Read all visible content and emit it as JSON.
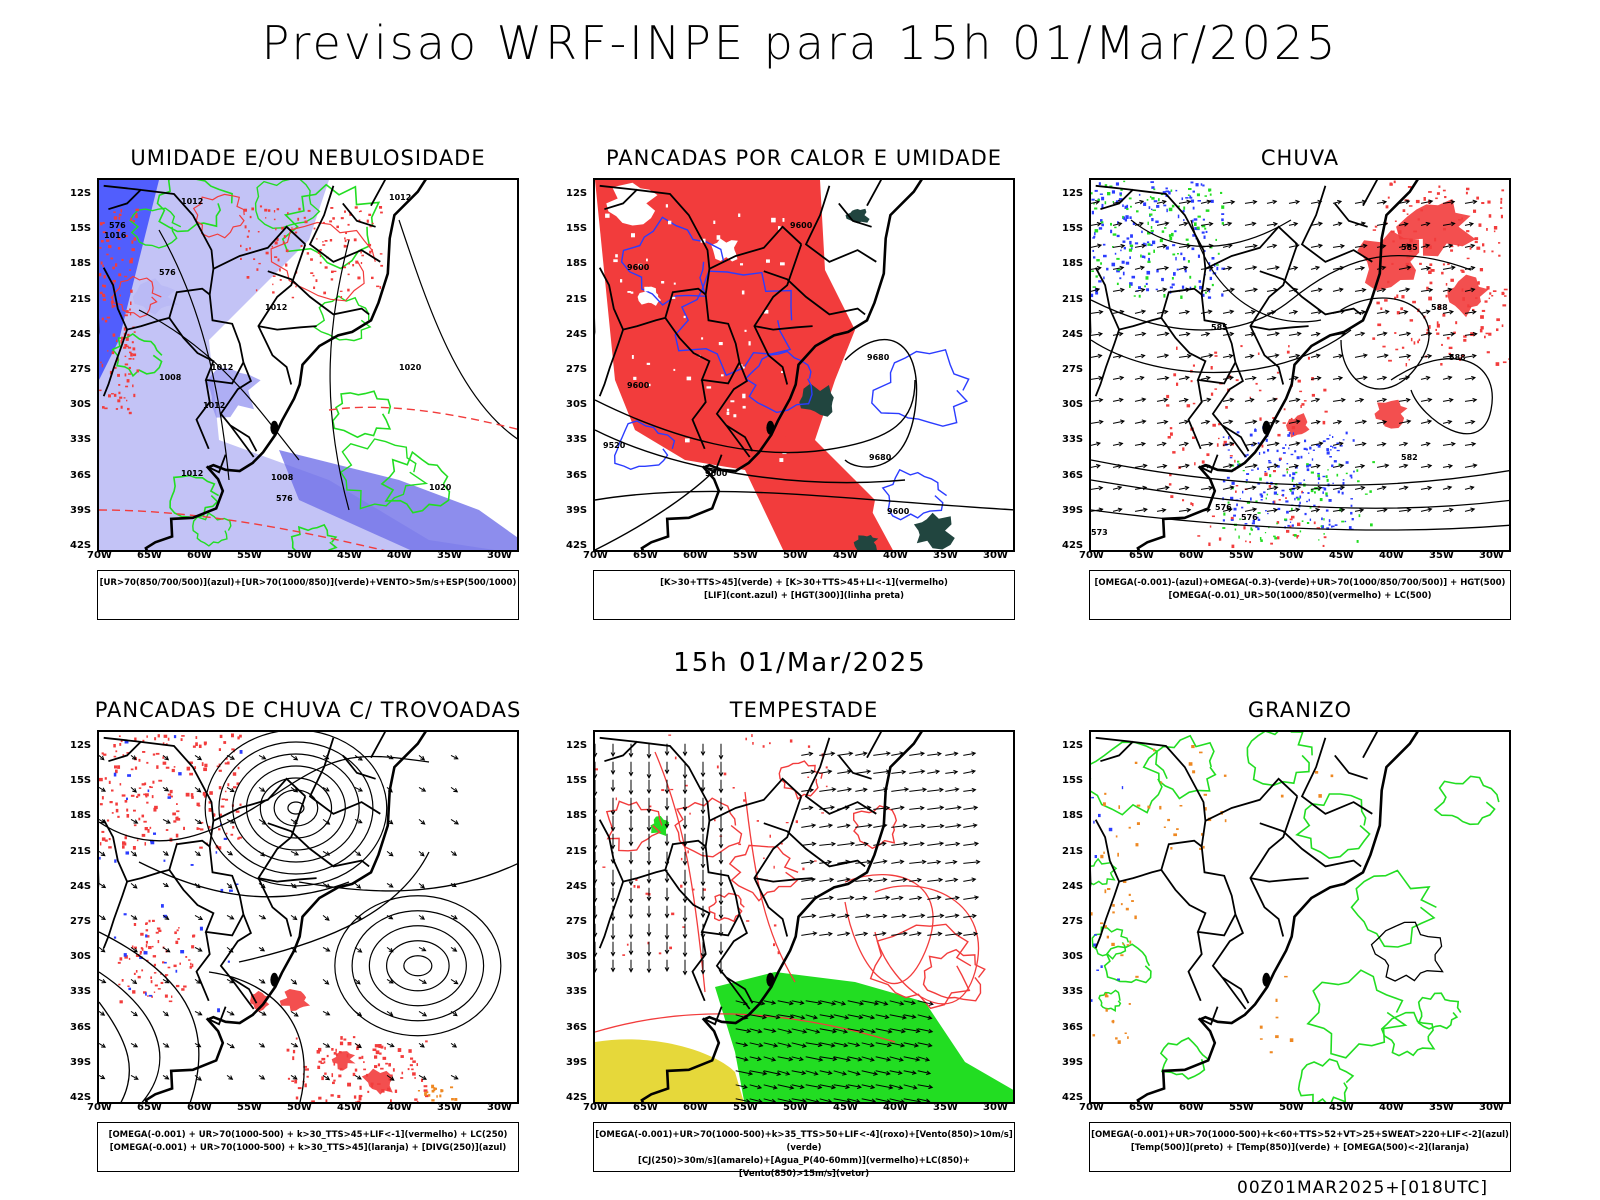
{
  "header": {
    "title": "Previsao WRF-INPE  para 15h 01/Mar/2025",
    "subtitle": "15h 01/Mar/2025",
    "footer": "00Z01MAR2025+[018UTC]"
  },
  "axes": {
    "lat_labels": [
      "12S",
      "15S",
      "18S",
      "21S",
      "24S",
      "27S",
      "30S",
      "33S",
      "36S",
      "39S",
      "42S"
    ],
    "lon_labels": [
      "70W",
      "65W",
      "60W",
      "55W",
      "50W",
      "45W",
      "40W",
      "35W",
      "30W"
    ]
  },
  "panels": [
    {
      "title": "UMIDADE E/OU NEBULOSIDADE",
      "legend_line1": "[UR>70(850/700/500)](azul)+[UR>70(1000/850)](verde)+VENTO>5m/s+ESP(500/1000)",
      "legend_line2": "",
      "contour_labels": [
        "1012",
        "1012",
        "1016",
        "1012",
        "1008",
        "1012",
        "1020",
        "1012",
        "1012",
        "1008",
        "1020",
        "576",
        "576",
        "576"
      ]
    },
    {
      "title": "PANCADAS POR CALOR E UMIDADE",
      "legend_line1": "[K>30+TTS>45](verde) + [K>30+TTS>45+LI<-1](vermelho)",
      "legend_line2": "[LIF](cont.azul) + [HGT(300)](linha preta)",
      "contour_labels": [
        "9600",
        "9600",
        "9680",
        "9600",
        "9520",
        "9600",
        "9680",
        "9600"
      ]
    },
    {
      "title": "CHUVA",
      "legend_line1": "[OMEGA(-0.001)-(azul)+OMEGA(-0.3)-(verde)+UR>70(1000/850/700/500)] + HGT(500)",
      "legend_line2": "[OMEGA(-0.01)_UR>50(1000/850)(vermelho) + LC(500)",
      "contour_labels": [
        "585",
        "588",
        "585",
        "588",
        "576",
        "573",
        "576",
        "582"
      ]
    },
    {
      "title": "PANCADAS DE CHUVA C/ TROVOADAS",
      "legend_line1": "[OMEGA(-0.001) + UR>70(1000-500) + k>30_TTS>45+LIF<-1](vermelho) + LC(250)",
      "legend_line2": "[OMEGA(-0.001) + UR>70(1000-500) + k>30_TTS>45](laranja) + [DIVG(250)](azul)",
      "contour_labels": []
    },
    {
      "title": "TEMPESTADE",
      "legend_line1": "[OMEGA(-0.001)+UR>70(1000-500)+k>35_TTS>50+LIF<-4](roxo)+[Vento(850)>10m/s](verde)",
      "legend_line2": "[CJ(250)>30m/s](amarelo)+[Agua_P(40-60mm)](vermelho)+LC(850)+[Vento(850)>15m/s](vetor)",
      "contour_labels": []
    },
    {
      "title": "GRANIZO",
      "legend_line1": "[OMEGA(-0.001)+UR>70(1000-500)+k<60+TTS>52+VT>25+SWEAT>220+LIF<-2](azul)",
      "legend_line2": "[Temp(500)](preto) + [Temp(850)](verde) + [OMEGA(500)<-2](laranja)",
      "contour_labels": []
    }
  ],
  "colors": {
    "blue": "#2b3cff",
    "light_blue": "#b9b9f5",
    "green": "#22dd22",
    "red": "#f23c3c",
    "dark_teal": "#21453f",
    "yellow": "#e6d83a",
    "orange": "#ee8822"
  }
}
